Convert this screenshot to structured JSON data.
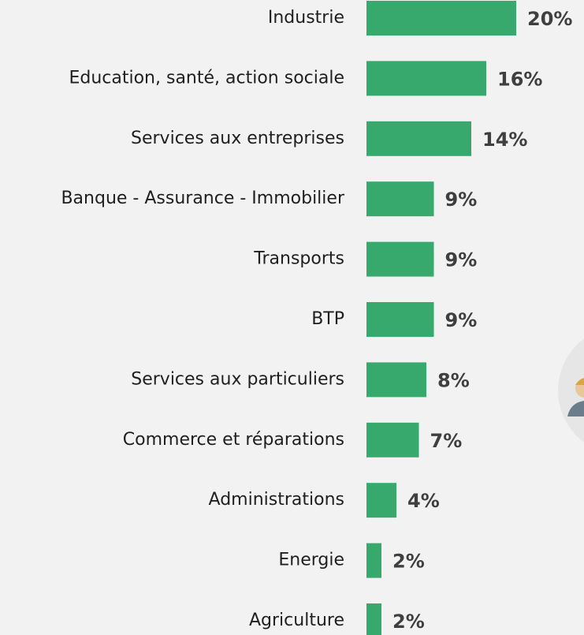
{
  "chart_data": {
    "type": "bar",
    "orientation": "horizontal",
    "categories": [
      "Industrie",
      "Education, santé, action sociale",
      "Services aux entreprises",
      "Banque - Assurance - Immobilier",
      "Transports",
      "BTP",
      "Services aux particuliers",
      "Commerce et réparations",
      "Administrations",
      "Energie",
      "Agriculture"
    ],
    "values": [
      20,
      16,
      14,
      9,
      9,
      9,
      8,
      7,
      4,
      2,
      2
    ],
    "value_labels": [
      "20%",
      "16%",
      "14%",
      "9%",
      "9%",
      "9%",
      "8%",
      "7%",
      "4%",
      "2%",
      "2%"
    ],
    "color": "#37a96c"
  }
}
